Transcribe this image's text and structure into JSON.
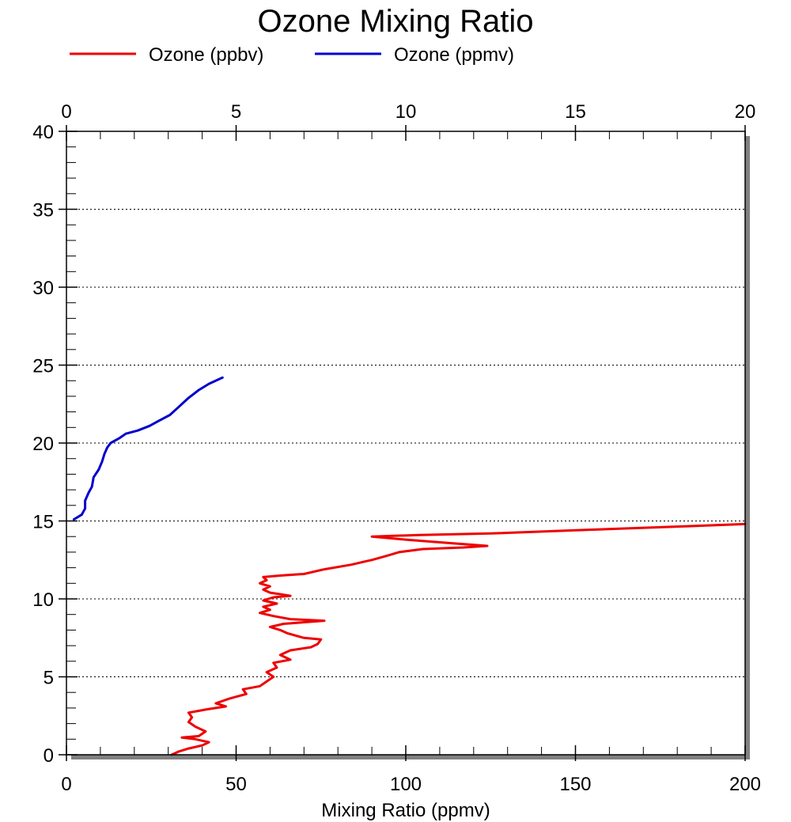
{
  "chart_data": {
    "type": "line",
    "title": "Ozone Mixing Ratio",
    "xlabel": "Mixing Ratio (ppmv)",
    "ylabel": "",
    "grid": "horizontal dotted",
    "legend_position": "top",
    "x_bottom": {
      "range": [
        0,
        200
      ],
      "ticks": [
        "0",
        "50",
        "100",
        "150",
        "200"
      ],
      "tick_values": [
        0,
        50,
        100,
        150,
        200
      ]
    },
    "x_top": {
      "range": [
        0,
        20
      ],
      "ticks": [
        "0",
        "5",
        "10",
        "15",
        "20"
      ],
      "tick_values": [
        0,
        5,
        10,
        15,
        20
      ]
    },
    "y": {
      "range": [
        0,
        40
      ],
      "ticks": [
        "0",
        "5",
        "10",
        "15",
        "20",
        "25",
        "30",
        "35",
        "40"
      ],
      "tick_values": [
        0,
        5,
        10,
        15,
        20,
        25,
        30,
        35,
        40
      ]
    },
    "series": [
      {
        "name": "Ozone (ppbv)",
        "color": "#ee0000",
        "x_axis": "bottom",
        "points": [
          [
            31,
            0.0
          ],
          [
            33,
            0.2
          ],
          [
            36,
            0.4
          ],
          [
            40,
            0.6
          ],
          [
            42,
            0.8
          ],
          [
            38,
            1.0
          ],
          [
            34,
            1.1
          ],
          [
            39,
            1.2
          ],
          [
            41,
            1.5
          ],
          [
            38,
            1.8
          ],
          [
            36,
            2.1
          ],
          [
            37,
            2.4
          ],
          [
            36,
            2.7
          ],
          [
            41,
            2.9
          ],
          [
            47,
            3.1
          ],
          [
            44,
            3.3
          ],
          [
            48,
            3.6
          ],
          [
            53,
            3.9
          ],
          [
            52,
            4.2
          ],
          [
            57,
            4.4
          ],
          [
            59,
            4.7
          ],
          [
            61,
            5.0
          ],
          [
            59,
            5.3
          ],
          [
            62,
            5.6
          ],
          [
            61,
            5.9
          ],
          [
            66,
            6.1
          ],
          [
            63,
            6.4
          ],
          [
            66,
            6.7
          ],
          [
            72,
            6.9
          ],
          [
            74,
            7.1
          ],
          [
            75,
            7.4
          ],
          [
            70,
            7.5
          ],
          [
            65,
            7.8
          ],
          [
            63,
            8.0
          ],
          [
            60,
            8.2
          ],
          [
            64,
            8.4
          ],
          [
            76,
            8.6
          ],
          [
            66,
            8.7
          ],
          [
            61,
            8.9
          ],
          [
            57,
            9.1
          ],
          [
            60,
            9.3
          ],
          [
            58,
            9.5
          ],
          [
            62,
            9.7
          ],
          [
            58,
            9.9
          ],
          [
            61,
            10.1
          ],
          [
            66,
            10.2
          ],
          [
            60,
            10.4
          ],
          [
            58,
            10.6
          ],
          [
            60,
            10.8
          ],
          [
            57,
            11.0
          ],
          [
            59,
            11.2
          ],
          [
            58,
            11.4
          ],
          [
            63,
            11.5
          ],
          [
            70,
            11.6
          ],
          [
            76,
            11.9
          ],
          [
            84,
            12.2
          ],
          [
            88,
            12.4
          ],
          [
            90,
            12.5
          ],
          [
            95,
            12.8
          ],
          [
            98,
            13.0
          ],
          [
            105,
            13.2
          ],
          [
            117,
            13.3
          ],
          [
            124,
            13.4
          ],
          [
            112,
            13.6
          ],
          [
            100,
            13.8
          ],
          [
            90,
            14.0
          ],
          [
            104,
            14.1
          ],
          [
            125,
            14.2
          ],
          [
            150,
            14.4
          ],
          [
            175,
            14.6
          ],
          [
            200,
            14.8
          ]
        ]
      },
      {
        "name": "Ozone (ppmv)",
        "color": "#0000cc",
        "x_axis": "top",
        "points": [
          [
            0.22,
            15.1
          ],
          [
            0.45,
            15.4
          ],
          [
            0.55,
            15.8
          ],
          [
            0.55,
            16.3
          ],
          [
            0.65,
            16.8
          ],
          [
            0.75,
            17.2
          ],
          [
            0.8,
            17.8
          ],
          [
            0.95,
            18.3
          ],
          [
            1.05,
            18.8
          ],
          [
            1.12,
            19.3
          ],
          [
            1.2,
            19.7
          ],
          [
            1.3,
            20.0
          ],
          [
            1.55,
            20.3
          ],
          [
            1.75,
            20.6
          ],
          [
            2.1,
            20.8
          ],
          [
            2.45,
            21.1
          ],
          [
            2.7,
            21.4
          ],
          [
            3.05,
            21.8
          ],
          [
            3.3,
            22.3
          ],
          [
            3.6,
            22.9
          ],
          [
            3.9,
            23.4
          ],
          [
            4.2,
            23.8
          ],
          [
            4.6,
            24.2
          ]
        ]
      }
    ]
  }
}
